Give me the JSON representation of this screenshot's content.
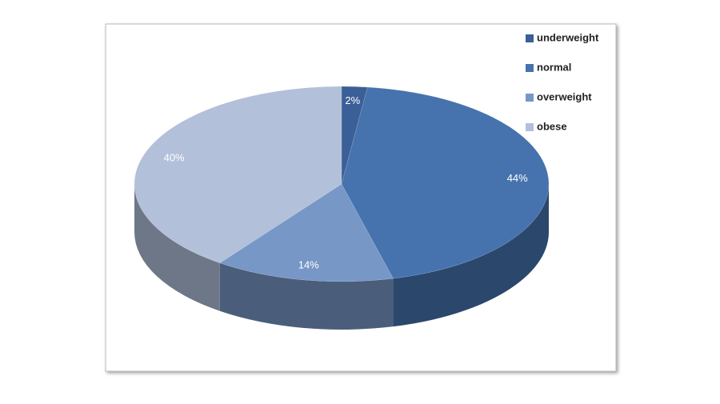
{
  "chart_data": {
    "type": "pie",
    "categories": [
      "underweight",
      "normal",
      "overweight",
      "obese"
    ],
    "values": [
      2,
      44,
      14,
      40
    ],
    "value_labels": [
      "2%",
      "44%",
      "14%",
      "40%"
    ],
    "colors": [
      "#3b5f97",
      "#4673ae",
      "#7797c6",
      "#b2c0da"
    ],
    "legend": "right"
  }
}
